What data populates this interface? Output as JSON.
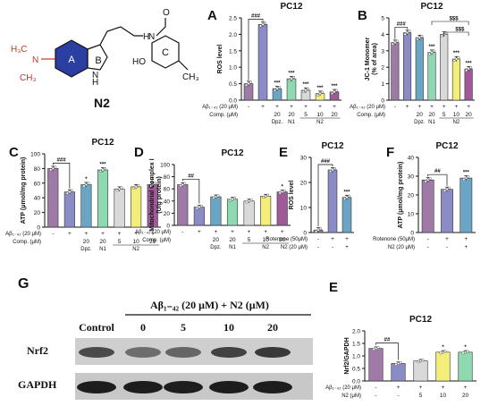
{
  "structure": {
    "label": "N2",
    "ring_a": "A",
    "ring_b": "B",
    "ring_c": "C",
    "n": "N",
    "nh": "NH",
    "hn": "H",
    "h": "H",
    "o": "O",
    "ho": "HO",
    "ch3": "CH₃",
    "h3c": "H₃C",
    "ch3_left": "CH₃"
  },
  "colors": {
    "control": "#9e7aa6",
    "abeta": "#8b8cc6",
    "dpz": "#6aa6c4",
    "n1": "#8fd9b1",
    "n2_5": "#d9d9d9",
    "n2_10": "#f3ee7a",
    "n2_20": "#a05a9a",
    "ringA": "#2b3fa3"
  },
  "row_labels": {
    "abeta": "Aβ₁₋₄₂ (20 μM)",
    "comp": "Comp. (μM)",
    "rotenone": "Rotenone (50μM)",
    "n2": "N2 (20 μM)",
    "n2_short": "N2 (μM)"
  },
  "group_labels": {
    "dpz": "Dpz.",
    "n1": "N1",
    "n2": "N2"
  },
  "signs": {
    "plus": "+",
    "minus": "-"
  },
  "chart_data": [
    {
      "panel": "A",
      "type": "bar",
      "title": "PC12",
      "ylabel": "ROS level",
      "ylim": [
        0,
        2.5
      ],
      "yticks": [
        "0.0",
        "0.5",
        "1.0",
        "1.5",
        "2.0",
        "2.5"
      ],
      "abeta": [
        "-",
        "+",
        "+",
        "+",
        "+",
        "+",
        "+"
      ],
      "comp": [
        "",
        "",
        "20",
        "20",
        "5",
        "10",
        "20"
      ],
      "groups": [
        "Dpz.",
        "N1",
        "N2"
      ],
      "values": [
        0.5,
        2.3,
        0.35,
        0.65,
        0.3,
        0.2,
        0.25
      ],
      "sig": [
        "",
        "",
        "***",
        "***",
        "***",
        "***",
        "***"
      ],
      "bracket": "###"
    },
    {
      "panel": "B",
      "type": "bar",
      "title": "PC12",
      "ylabel": "JC-1 Monomer\n(% of area)",
      "ylim": [
        0,
        5
      ],
      "yticks": [
        "0",
        "1",
        "2",
        "3",
        "4",
        "5"
      ],
      "abeta": [
        "-",
        "+",
        "+",
        "+",
        "+",
        "+",
        "+"
      ],
      "comp": [
        "",
        "",
        "20",
        "20",
        "5",
        "10",
        "20"
      ],
      "groups": [
        "Dpz.",
        "N1",
        "N2"
      ],
      "values": [
        3.5,
        4.1,
        3.8,
        2.9,
        4.0,
        2.5,
        1.9
      ],
      "sig": [
        "",
        "",
        "",
        "***",
        "",
        "***",
        "***"
      ],
      "bracket": "###",
      "extra": [
        "$$$",
        "$$$"
      ]
    },
    {
      "panel": "C",
      "type": "bar",
      "title": "PC12",
      "ylabel": "ATP (μmol/mg protein)",
      "ylim": [
        0,
        100
      ],
      "yticks": [
        "0",
        "20",
        "40",
        "60",
        "80",
        "100"
      ],
      "abeta": [
        "-",
        "+",
        "+",
        "+",
        "+",
        "+",
        "+"
      ],
      "comp": [
        "",
        "",
        "20",
        "20",
        "5",
        "10",
        "20"
      ],
      "groups": [
        "Dpz.",
        "N1",
        "N2"
      ],
      "values": [
        80,
        48,
        58,
        78,
        52,
        55,
        58
      ],
      "sig": [
        "",
        "",
        "*",
        "***",
        "",
        "",
        "*"
      ],
      "bracket": "###"
    },
    {
      "panel": "D",
      "type": "bar",
      "title": "PC12",
      "ylabel": "Mitochondrial Complex Ⅰ\n(U/g protein)",
      "ylim": [
        0,
        100
      ],
      "yticks": [
        "0",
        "20",
        "40",
        "60",
        "80",
        "100"
      ],
      "abeta": [
        "-",
        "+",
        "+",
        "+",
        "+",
        "+",
        "+"
      ],
      "comp": [
        "",
        "",
        "20",
        "20",
        "5",
        "10",
        "20"
      ],
      "groups": [
        "Dpz.",
        "N1",
        "N2"
      ],
      "values": [
        67,
        30,
        47,
        43,
        40,
        48,
        55
      ],
      "sig": [
        "",
        "",
        "",
        "",
        "",
        "",
        "*"
      ],
      "bracket": "##"
    },
    {
      "panel": "E",
      "type": "bar",
      "title": "PC12",
      "ylabel": "ROS level",
      "ylim": [
        0,
        30
      ],
      "yticks": [
        "0",
        "10",
        "20",
        "30"
      ],
      "rotenone": [
        "-",
        "+",
        "+"
      ],
      "n2": [
        "-",
        "-",
        "+"
      ],
      "values": [
        1,
        25,
        14
      ],
      "sig": [
        "",
        "",
        "***"
      ],
      "bracket": "###"
    },
    {
      "panel": "F",
      "type": "bar",
      "title": "PC12",
      "ylabel": "ATP (μmol/mg protein)",
      "ylim": [
        0,
        40
      ],
      "yticks": [
        "0",
        "10",
        "20",
        "30",
        "40"
      ],
      "rotenone": [
        "-",
        "+",
        "+"
      ],
      "n2": [
        "-",
        "-",
        "+"
      ],
      "values": [
        28,
        23,
        29
      ],
      "sig": [
        "",
        "",
        "***"
      ],
      "bracket": "##"
    },
    {
      "panel": "E2",
      "type": "bar",
      "title": "PC12",
      "ylabel": "Nrf2/GAPDH",
      "ylim": [
        0,
        2.0
      ],
      "yticks": [
        "0.0",
        "0.5",
        "1.0",
        "1.5",
        "2.0"
      ],
      "abeta": [
        "-",
        "+",
        "+",
        "+",
        "+"
      ],
      "n2": [
        "-",
        "-",
        "5",
        "10",
        "20"
      ],
      "values": [
        1.3,
        0.7,
        0.8,
        1.15,
        1.15
      ],
      "sig": [
        "",
        "",
        "",
        "*",
        "*"
      ],
      "bracket": "##"
    }
  ],
  "panel_letters": {
    "A": "A",
    "B": "B",
    "C": "C",
    "D": "D",
    "E": "E",
    "F": "F",
    "G": "G",
    "E2": "E"
  },
  "blot": {
    "header": "Aβ₁₋₄₂ (20 μM) + N2 (μM)",
    "lanes": [
      "Control",
      "0",
      "5",
      "10",
      "20"
    ],
    "rows": [
      "Nrf2",
      "GAPDH"
    ],
    "nrf2_intensity": [
      0.75,
      0.55,
      0.6,
      0.8,
      0.85
    ],
    "gapdh_intensity": [
      0.95,
      0.95,
      0.95,
      0.95,
      0.95
    ]
  }
}
